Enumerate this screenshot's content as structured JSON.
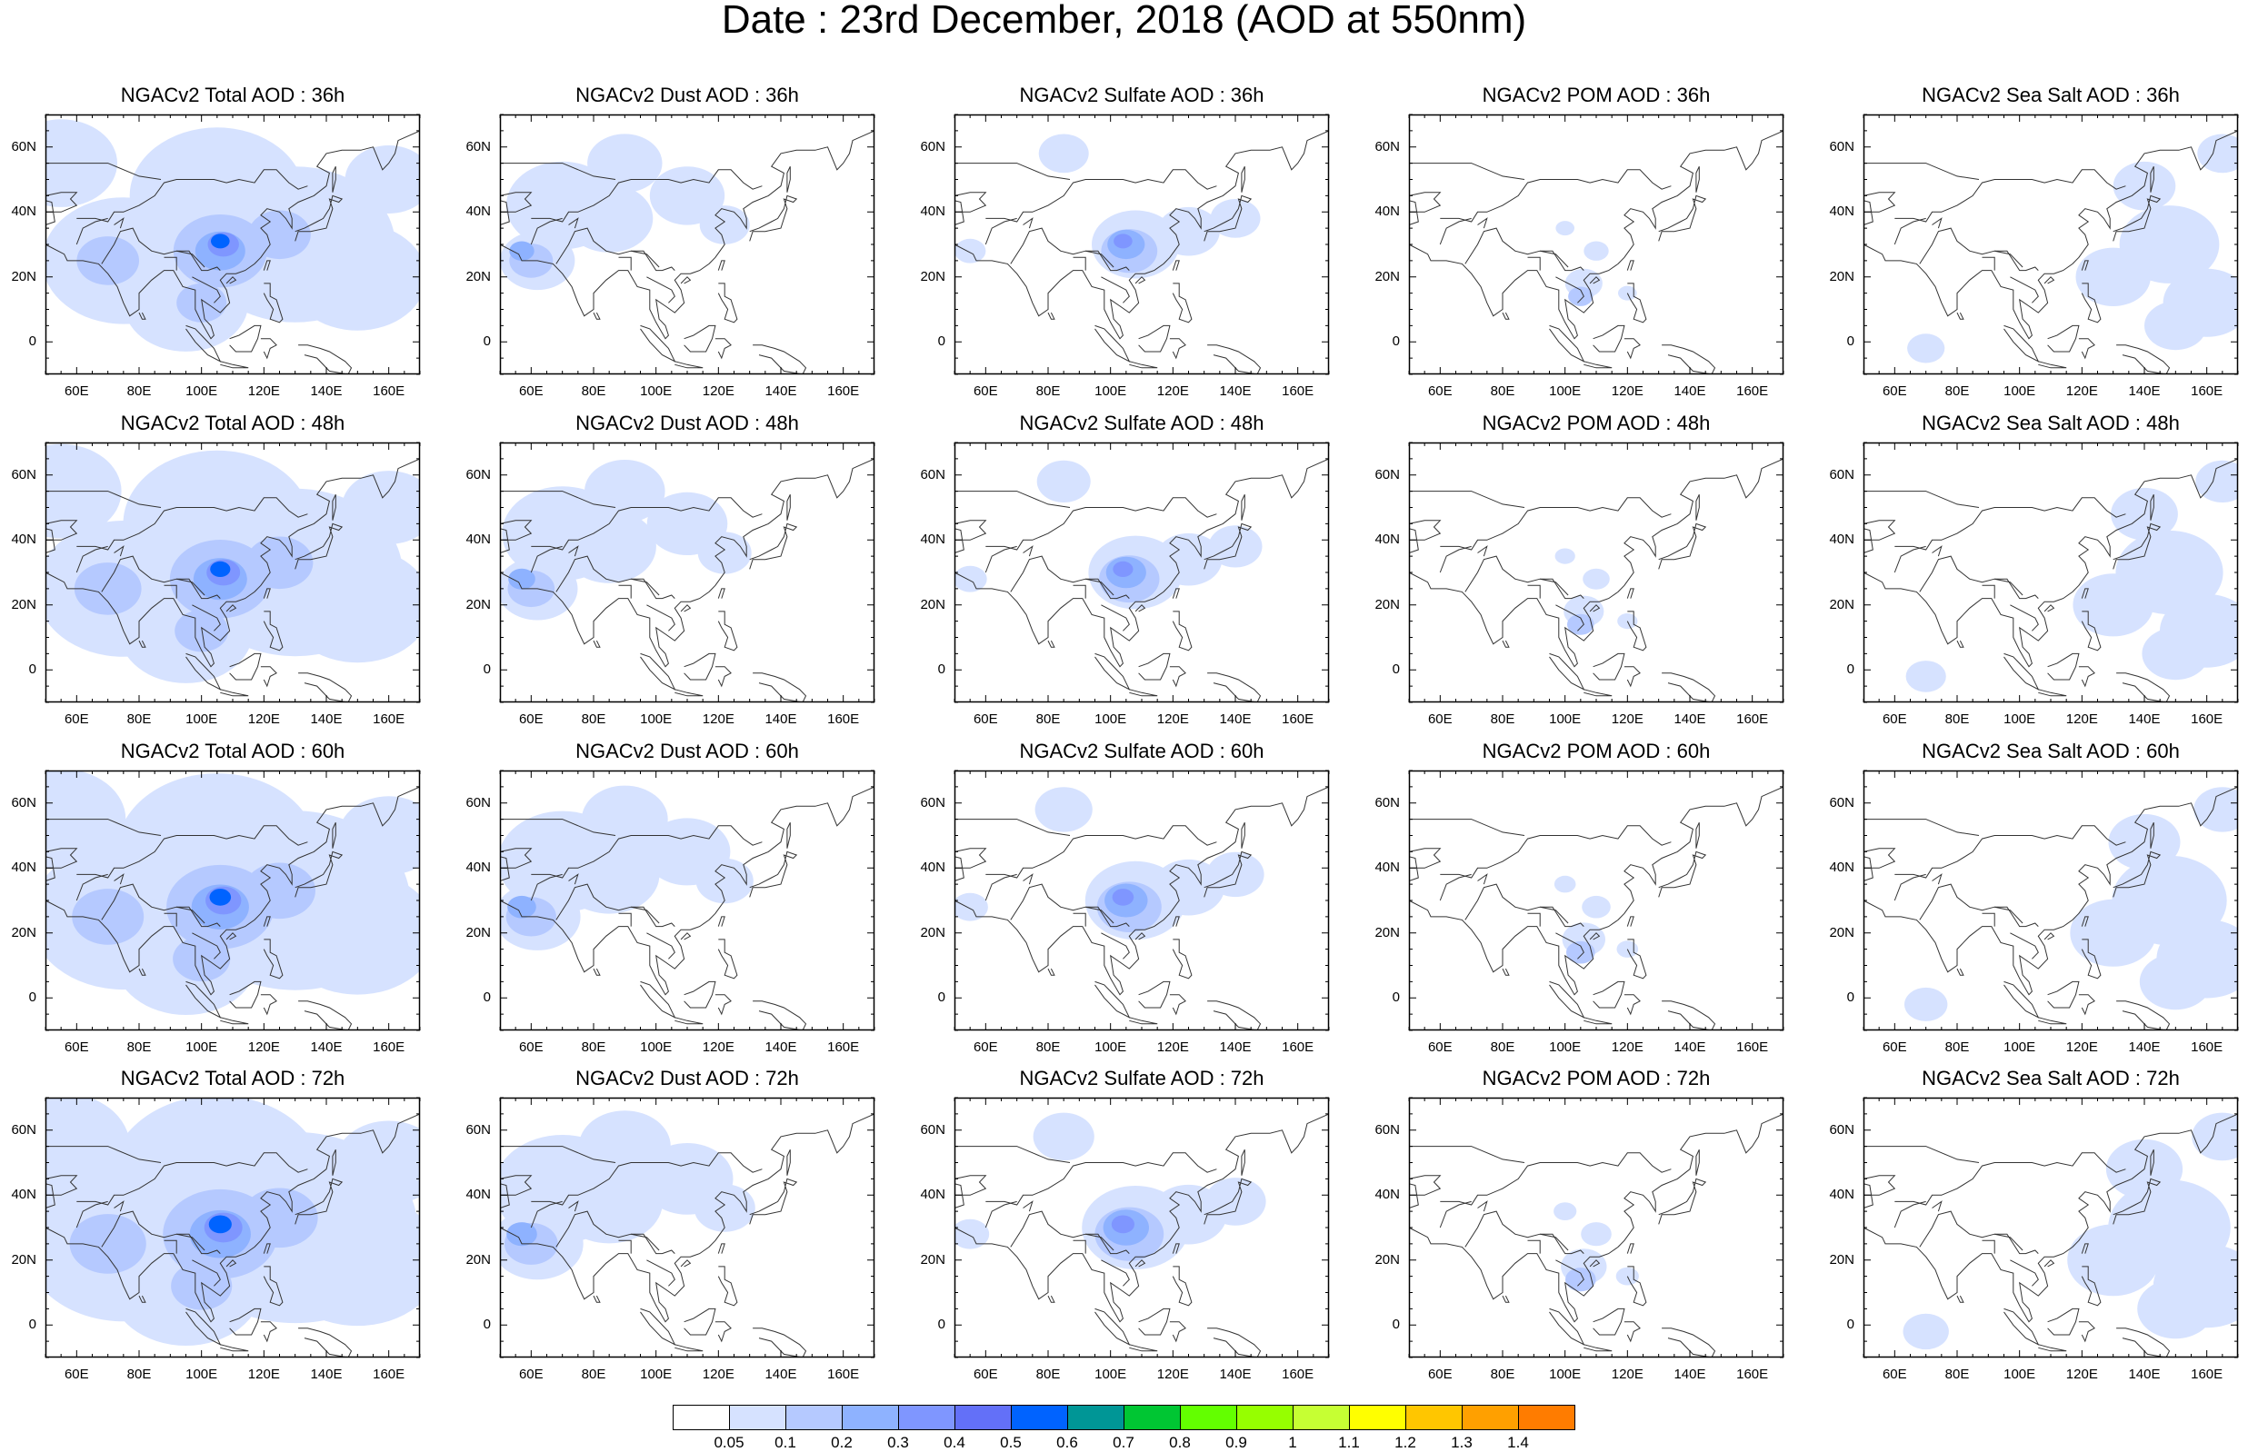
{
  "title": "Date : 23rd December, 2018 (AOD at 550nm)",
  "lat_ticks": [
    "60N",
    "40N",
    "20N",
    "0"
  ],
  "lon_ticks": [
    "60E",
    "80E",
    "100E",
    "120E",
    "140E",
    "160E"
  ],
  "map_extent": {
    "lon_min": 50,
    "lon_max": 170,
    "lat_min": -10,
    "lat_max": 70
  },
  "rows": [
    {
      "panels": [
        {
          "title": "NGACv2 Total AOD : 36h",
          "species": "total",
          "hour": 36
        },
        {
          "title": "NGACv2 Dust AOD : 36h",
          "species": "dust",
          "hour": 36
        },
        {
          "title": "NGACv2 Sulfate AOD : 36h",
          "species": "sulfate",
          "hour": 36
        },
        {
          "title": "NGACv2 POM AOD : 36h",
          "species": "pom",
          "hour": 36
        },
        {
          "title": "NGACv2 Sea Salt AOD : 36h",
          "species": "seasalt",
          "hour": 36
        }
      ]
    },
    {
      "panels": [
        {
          "title": "NGACv2 Total AOD : 48h",
          "species": "total",
          "hour": 48
        },
        {
          "title": "NGACv2 Dust AOD : 48h",
          "species": "dust",
          "hour": 48
        },
        {
          "title": "NGACv2 Sulfate AOD : 48h",
          "species": "sulfate",
          "hour": 48
        },
        {
          "title": "NGACv2 POM AOD : 48h",
          "species": "pom",
          "hour": 48
        },
        {
          "title": "NGACv2 Sea Salt AOD : 48h",
          "species": "seasalt",
          "hour": 48
        }
      ]
    },
    {
      "panels": [
        {
          "title": "NGACv2 Total AOD : 60h",
          "species": "total",
          "hour": 60
        },
        {
          "title": "NGACv2 Dust AOD : 60h",
          "species": "dust",
          "hour": 60
        },
        {
          "title": "NGACv2 Sulfate AOD : 60h",
          "species": "sulfate",
          "hour": 60
        },
        {
          "title": "NGACv2 POM AOD : 60h",
          "species": "pom",
          "hour": 60
        },
        {
          "title": "NGACv2 Sea Salt AOD : 60h",
          "species": "seasalt",
          "hour": 60
        }
      ]
    },
    {
      "panels": [
        {
          "title": "NGACv2 Total AOD : 72h",
          "species": "total",
          "hour": 72
        },
        {
          "title": "NGACv2 Dust AOD : 72h",
          "species": "dust",
          "hour": 72
        },
        {
          "title": "NGACv2 Sulfate AOD : 72h",
          "species": "sulfate",
          "hour": 72
        },
        {
          "title": "NGACv2 POM AOD : 72h",
          "species": "pom",
          "hour": 72
        },
        {
          "title": "NGACv2 Sea Salt  AOD : 72h",
          "species": "seasalt",
          "hour": 72
        }
      ]
    }
  ],
  "colorbar": {
    "labels": [
      "0.05",
      "0.1",
      "0.2",
      "0.3",
      "0.4",
      "0.5",
      "0.6",
      "0.7",
      "0.8",
      "0.9",
      "1",
      "1.1",
      "1.2",
      "1.3",
      "1.4"
    ],
    "colors": [
      "#ffffff",
      "#d6e2ff",
      "#b5c9ff",
      "#8eb2ff",
      "#7f96ff",
      "#6370f8",
      "#0063ff",
      "#009696",
      "#00c633",
      "#63ff00",
      "#96ff00",
      "#c6ff33",
      "#ffff00",
      "#ffc600",
      "#ffa000",
      "#ff7c00",
      "#ff1900"
    ]
  }
}
